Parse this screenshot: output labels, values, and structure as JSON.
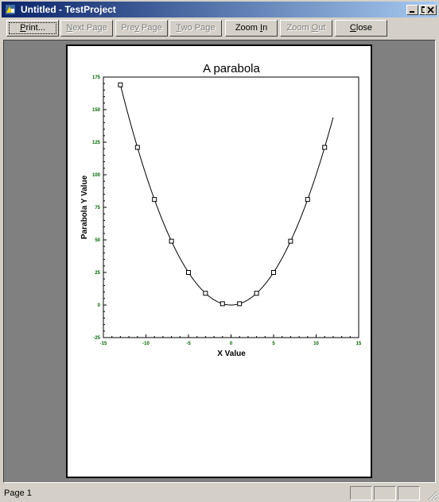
{
  "window": {
    "title": "Untitled - TestProject"
  },
  "title_bar_controls": [
    "minimize-icon",
    "maximize-icon",
    "close-icon"
  ],
  "toolbar": {
    "print": "Print...",
    "next_page": "Next Page",
    "prev_page": "Prev Page",
    "two_page": "Two Page",
    "zoom_in": "Zoom In",
    "zoom_out": "Zoom Out",
    "close": "Close"
  },
  "status": {
    "page": "Page 1"
  },
  "colors": {
    "tick_labels": "#006400",
    "title_bar": "#0a246a"
  },
  "chart_data": {
    "type": "line",
    "title": "A parabola",
    "xlabel": "X Value",
    "ylabel": "Parabola Y Value",
    "xlim": [
      -15,
      15
    ],
    "ylim": [
      -25,
      175
    ],
    "xticks": [
      -15,
      -10,
      -5,
      0,
      5,
      10,
      15
    ],
    "yticks": [
      -25,
      0,
      25,
      50,
      75,
      100,
      125,
      150,
      175
    ],
    "xtick_labels": [
      "-15",
      "-10",
      "-5",
      "0",
      "5",
      "10",
      "15"
    ],
    "ytick_labels": [
      "-25",
      "0",
      "25",
      "50",
      "75",
      "100",
      "125",
      "150",
      "175"
    ],
    "grid": false,
    "series": [
      {
        "curve": "y = x^2",
        "x_range": [
          -13,
          12
        ],
        "markers_x": [
          -13,
          -11,
          -9,
          -7,
          -5,
          -3,
          -1,
          1,
          3,
          5,
          7,
          9,
          11
        ],
        "markers_y": [
          169,
          121,
          81,
          49,
          25,
          9,
          1,
          1,
          9,
          25,
          49,
          81,
          121
        ]
      }
    ]
  }
}
